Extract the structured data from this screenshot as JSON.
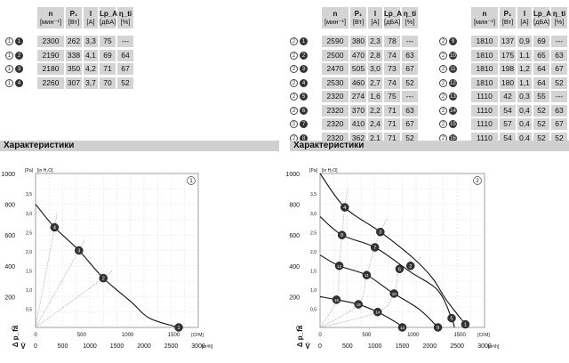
{
  "tables": {
    "headers": [
      {
        "sym": "n",
        "unit": "[мин⁻¹]"
      },
      {
        "sym": "P₁",
        "unit": "[Вт]"
      },
      {
        "sym": "I",
        "unit": "[A]"
      },
      {
        "sym": "Lp_A",
        "unit": "[дБА]"
      },
      {
        "sym": "η_ti",
        "unit": "[%]"
      }
    ],
    "left": [
      {
        "id": "1",
        "n": "2300",
        "p": "262",
        "i": "3,3",
        "lp": "75",
        "eta": "---"
      },
      {
        "id": "2",
        "n": "2190",
        "p": "338",
        "i": "4,1",
        "lp": "69",
        "eta": "64"
      },
      {
        "id": "3",
        "n": "2180",
        "p": "350",
        "i": "4,2",
        "lp": "71",
        "eta": "67"
      },
      {
        "id": "4",
        "n": "2260",
        "p": "307",
        "i": "3,7",
        "lp": "70",
        "eta": "52"
      }
    ],
    "mid": [
      {
        "id": "1",
        "n": "2590",
        "p": "380",
        "i": "2,3",
        "lp": "78",
        "eta": "---"
      },
      {
        "id": "2",
        "n": "2500",
        "p": "470",
        "i": "2,8",
        "lp": "74",
        "eta": "63"
      },
      {
        "id": "3",
        "n": "2470",
        "p": "505",
        "i": "3,0",
        "lp": "73",
        "eta": "67"
      },
      {
        "id": "4",
        "n": "2530",
        "p": "460",
        "i": "2,7",
        "lp": "74",
        "eta": "52"
      },
      {
        "id": "5",
        "n": "2320",
        "p": "274",
        "i": "1,6",
        "lp": "75",
        "eta": "---"
      },
      {
        "id": "6",
        "n": "2320",
        "p": "370",
        "i": "2,2",
        "lp": "71",
        "eta": "63"
      },
      {
        "id": "7",
        "n": "2320",
        "p": "410",
        "i": "2,4",
        "lp": "71",
        "eta": "67"
      },
      {
        "id": "8",
        "n": "2320",
        "p": "362",
        "i": "2,1",
        "lp": "71",
        "eta": "52"
      }
    ],
    "right": [
      {
        "id": "9",
        "n": "1810",
        "p": "137",
        "i": "0,9",
        "lp": "69",
        "eta": "---"
      },
      {
        "id": "10",
        "n": "1810",
        "p": "175",
        "i": "1,1",
        "lp": "65",
        "eta": "63"
      },
      {
        "id": "11",
        "n": "1810",
        "p": "198",
        "i": "1,2",
        "lp": "64",
        "eta": "67"
      },
      {
        "id": "12",
        "n": "1810",
        "p": "180",
        "i": "1,1",
        "lp": "64",
        "eta": "52"
      },
      {
        "id": "13",
        "n": "1110",
        "p": "42",
        "i": "0,3",
        "lp": "55",
        "eta": "---"
      },
      {
        "id": "14",
        "n": "1110",
        "p": "54",
        "i": "0,4",
        "lp": "52",
        "eta": "63"
      },
      {
        "id": "15",
        "n": "1110",
        "p": "57",
        "i": "0,4",
        "lp": "52",
        "eta": "67"
      },
      {
        "id": "16",
        "n": "1110",
        "p": "54",
        "i": "0,4",
        "lp": "52",
        "eta": "52"
      }
    ],
    "left_group_label": "1",
    "right_group_label": "2"
  },
  "section_title_left": "Характеристики",
  "section_title_right": "Характеристики",
  "chart_data": [
    {
      "type": "line",
      "corner_label": "1",
      "ylabel": "Δ p_fa",
      "y_unit": "[Pa]",
      "y_inch_unit": "[in H₂O]",
      "xlabel": "V̇",
      "x_unit_cfm": "[CFM]",
      "x_unit_m3h": "[m³/h]",
      "xlim": [
        0,
        3000
      ],
      "ylim": [
        0,
        1000
      ],
      "x_ticks_m3h": [
        "0",
        "500",
        "1000",
        "1500",
        "2000",
        "2500",
        "3000"
      ],
      "x_ticks_cfm": [
        "0",
        "500",
        "1000",
        "1500"
      ],
      "y_ticks_pa": [
        "0",
        "200",
        "400",
        "600",
        "800",
        "1000"
      ],
      "y_ticks_inh2o": [
        "0,5",
        "1,0",
        "1,5",
        "2,0",
        "2,5",
        "3,0",
        "3,5"
      ],
      "grid": true,
      "series": [
        {
          "points": [
            [
              0,
              800
            ],
            [
              350,
              650
            ],
            [
              800,
              500
            ],
            [
              1250,
              320
            ],
            [
              1750,
              170
            ],
            [
              2100,
              60
            ],
            [
              2640,
              0
            ]
          ]
        }
      ],
      "markers": [
        {
          "id": "4",
          "x": 350,
          "y": 650
        },
        {
          "id": "3",
          "x": 800,
          "y": 500
        },
        {
          "id": "2",
          "x": 1250,
          "y": 320
        },
        {
          "id": "1",
          "x": 2640,
          "y": 0
        }
      ]
    },
    {
      "type": "line",
      "corner_label": "2",
      "ylabel": "Δ p_fa",
      "y_unit": "[Pa]",
      "y_inch_unit": "[in H₂O]",
      "xlabel": "V̇",
      "x_unit_cfm": "[CFM]",
      "x_unit_m3h": "[m³/h]",
      "xlim": [
        0,
        3000
      ],
      "ylim": [
        0,
        1000
      ],
      "x_ticks_m3h": [
        "0",
        "500",
        "1000",
        "1500",
        "2000",
        "2500",
        "3000"
      ],
      "x_ticks_cfm": [
        "0",
        "500",
        "1000",
        "1500"
      ],
      "y_ticks_pa": [
        "0",
        "200",
        "400",
        "600",
        "800",
        "1000"
      ],
      "y_ticks_inh2o": [
        "0,5",
        "1,0",
        "1,5",
        "2,0",
        "2,5",
        "3,0",
        "3,5"
      ],
      "grid": true,
      "series": [
        {
          "points": [
            [
              0,
              1000
            ],
            [
              450,
              780
            ],
            [
              1100,
              620
            ],
            [
              1700,
              450
            ],
            [
              2050,
              320
            ],
            [
              2300,
              180
            ],
            [
              2650,
              20
            ],
            [
              2700,
              0
            ]
          ]
        },
        {
          "points": [
            [
              0,
              720
            ],
            [
              400,
              600
            ],
            [
              1000,
              520
            ],
            [
              1650,
              360
            ],
            [
              2150,
              240
            ],
            [
              2400,
              60
            ],
            [
              2450,
              0
            ]
          ]
        },
        {
          "points": [
            [
              0,
              470
            ],
            [
              350,
              400
            ],
            [
              850,
              340
            ],
            [
              1300,
              230
            ],
            [
              1800,
              120
            ],
            [
              2150,
              0
            ]
          ]
        },
        {
          "points": [
            [
              0,
              200
            ],
            [
              300,
              180
            ],
            [
              700,
              150
            ],
            [
              1050,
              100
            ],
            [
              1400,
              30
            ],
            [
              1500,
              0
            ]
          ]
        }
      ],
      "markers": [
        {
          "id": "4",
          "x": 450,
          "y": 780
        },
        {
          "id": "3",
          "x": 1100,
          "y": 620
        },
        {
          "id": "2",
          "x": 1650,
          "y": 400
        },
        {
          "id": "1",
          "x": 2650,
          "y": 20
        },
        {
          "id": "8",
          "x": 400,
          "y": 600
        },
        {
          "id": "7",
          "x": 1000,
          "y": 520
        },
        {
          "id": "6",
          "x": 1450,
          "y": 380
        },
        {
          "id": "5",
          "x": 2400,
          "y": 60
        },
        {
          "id": "12",
          "x": 350,
          "y": 400
        },
        {
          "id": "11",
          "x": 850,
          "y": 340
        },
        {
          "id": "10",
          "x": 1350,
          "y": 220
        },
        {
          "id": "9",
          "x": 2150,
          "y": 0
        },
        {
          "id": "16",
          "x": 300,
          "y": 180
        },
        {
          "id": "15",
          "x": 700,
          "y": 150
        },
        {
          "id": "14",
          "x": 1050,
          "y": 100
        },
        {
          "id": "13",
          "x": 1500,
          "y": 0
        }
      ]
    }
  ]
}
